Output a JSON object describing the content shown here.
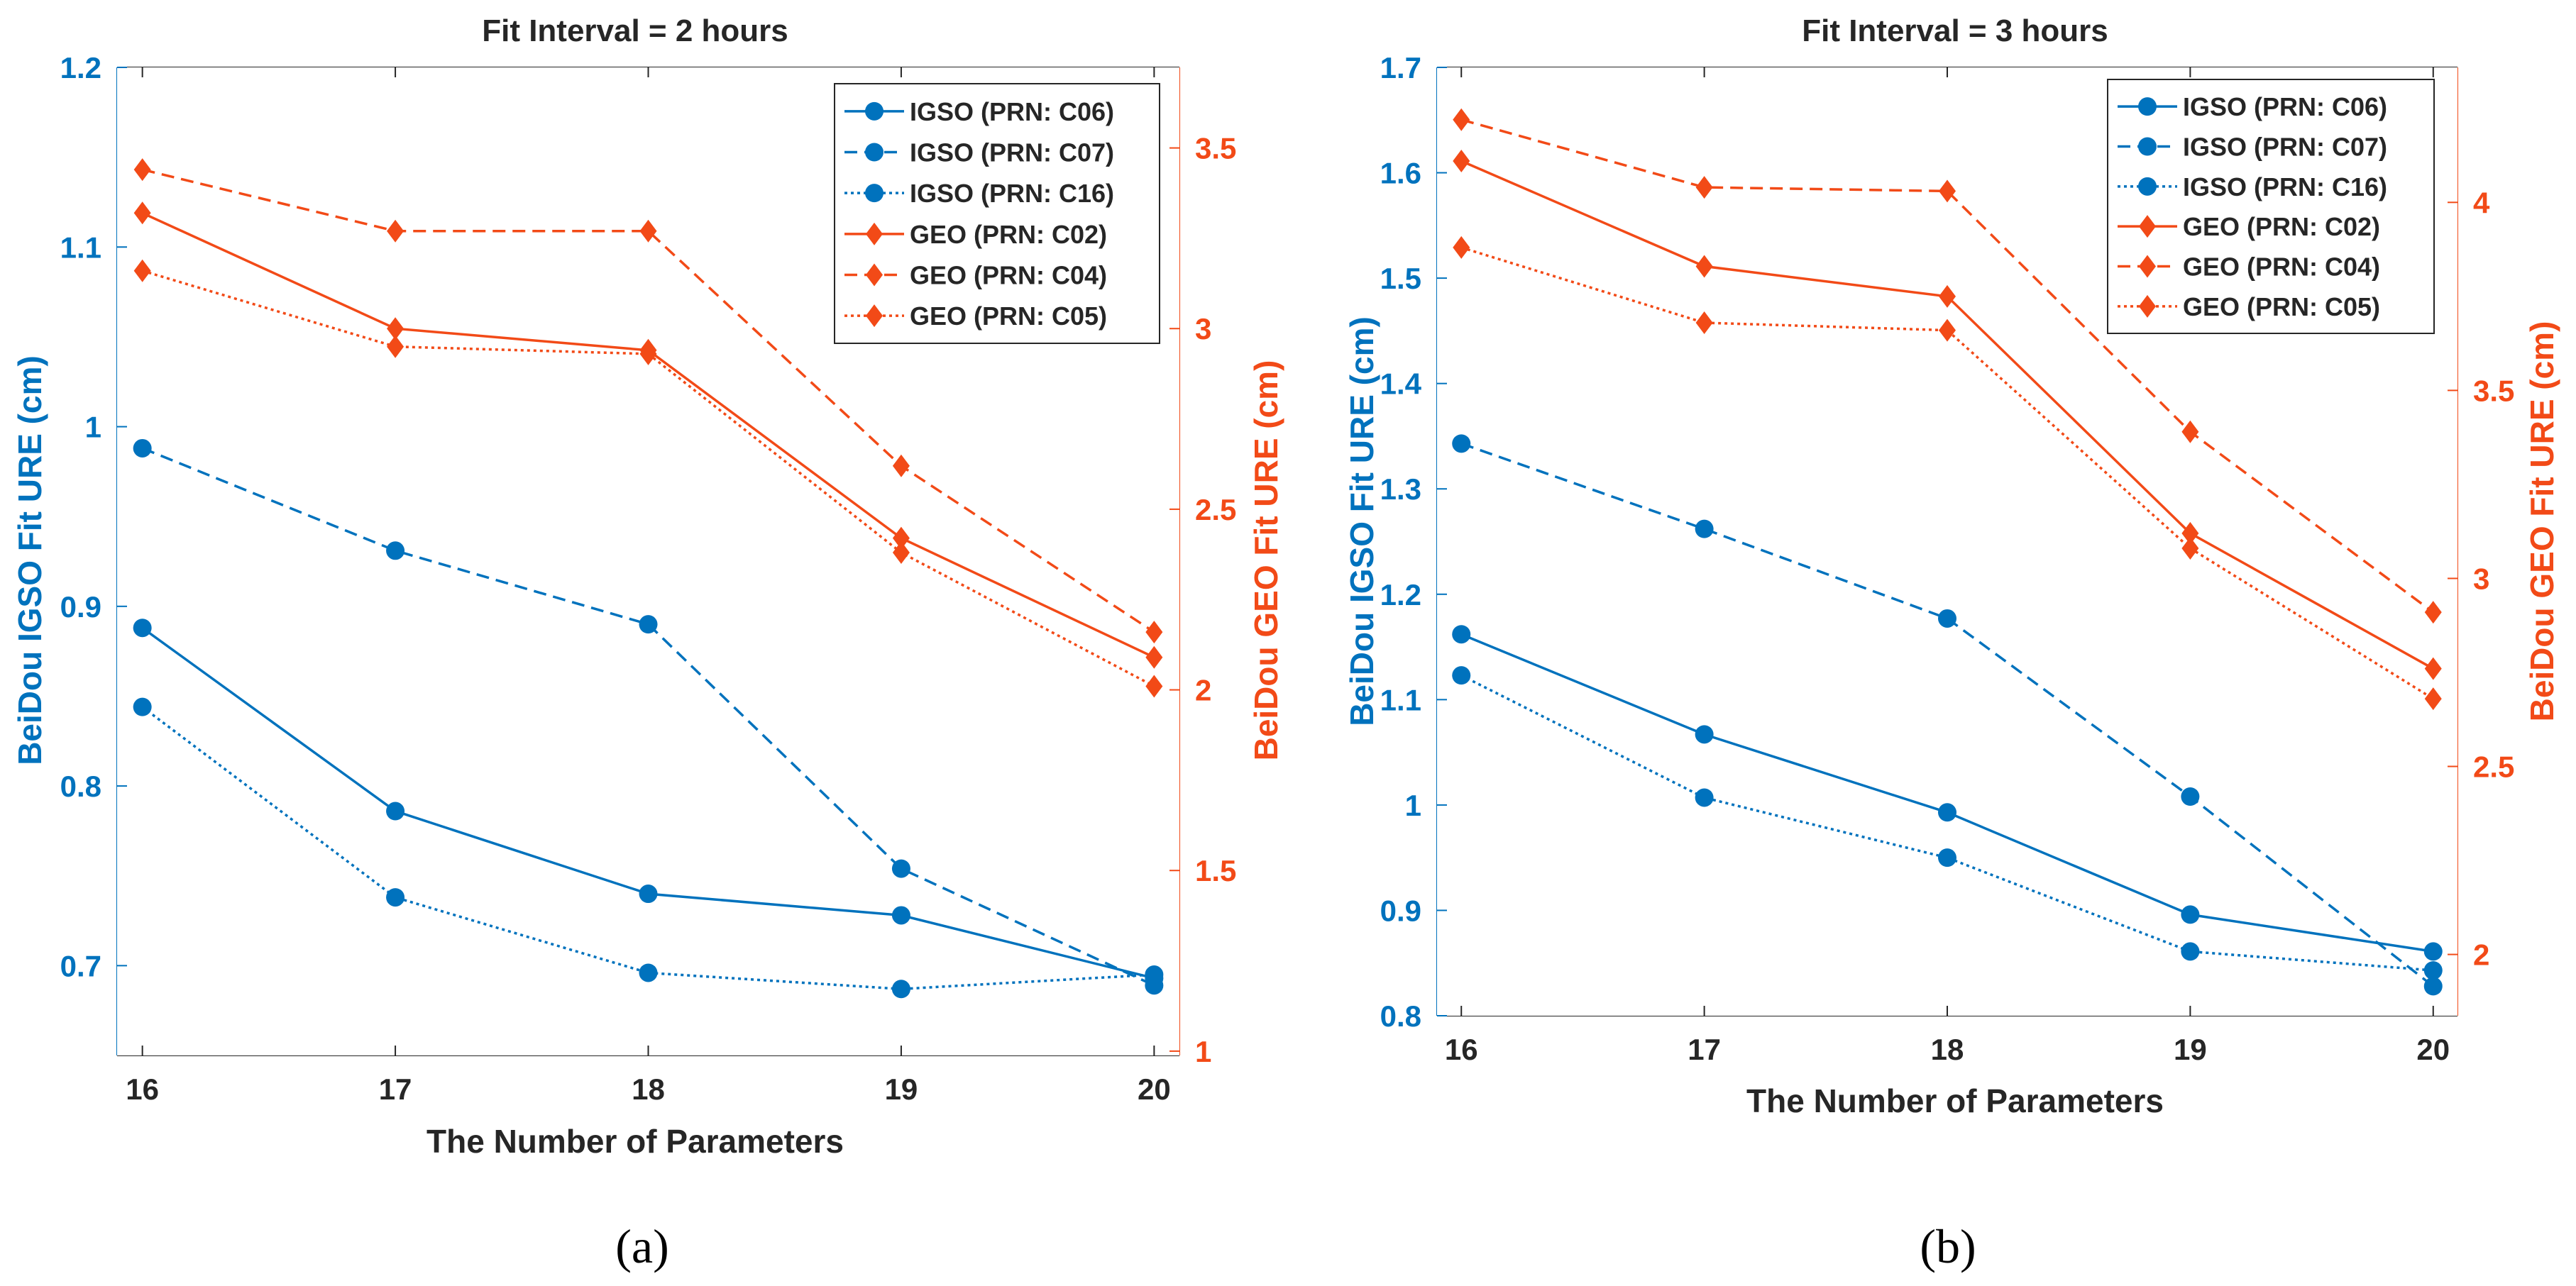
{
  "colors": {
    "igso": "#0072bd",
    "geo": "#f24a17",
    "axis_text": "#262626",
    "frame": "#262626"
  },
  "panels": [
    {
      "panel_label": "(a)",
      "chart_data": {
        "type": "line",
        "title": "Fit Interval = 2 hours",
        "xlabel": "The Number of Parameters",
        "ylabel_left": "BeiDou IGSO Fit URE (cm)",
        "ylabel_right": "BeiDou GEO Fit URE (cm)",
        "x": [
          16,
          17,
          18,
          19,
          20
        ],
        "xlim": [
          15.9,
          20.1
        ],
        "ylim_left": [
          0.65,
          1.2
        ],
        "ylim_right": [
          0.988,
          3.723
        ],
        "yticks_left": [
          0.7,
          0.8,
          0.9,
          1,
          1.1,
          1.2
        ],
        "ytick_labels_left": [
          "0.7",
          "0.8",
          "0.9",
          "1",
          "1.1",
          "1.2"
        ],
        "yticks_right": [
          1,
          1.5,
          2,
          2.5,
          3,
          3.5
        ],
        "ytick_labels_right": [
          "1",
          "1.5",
          "2",
          "2.5",
          "3",
          "3.5"
        ],
        "xtick_labels": [
          "16",
          "17",
          "18",
          "19",
          "20"
        ],
        "legend_position": "top-right",
        "series": [
          {
            "name": "IGSO (PRN: C06)",
            "axis": "left",
            "group": "igso",
            "dash": "solid",
            "marker": "circle",
            "values": [
              0.888,
              0.786,
              0.74,
              0.728,
              0.693
            ]
          },
          {
            "name": "IGSO (PRN: C07)",
            "axis": "left",
            "group": "igso",
            "dash": "dashed",
            "marker": "circle",
            "values": [
              0.988,
              0.931,
              0.89,
              0.754,
              0.689
            ]
          },
          {
            "name": "IGSO (PRN: C16)",
            "axis": "left",
            "group": "igso",
            "dash": "dotted",
            "marker": "circle",
            "values": [
              0.844,
              0.738,
              0.696,
              0.687,
              0.695
            ]
          },
          {
            "name": "GEO (PRN: C02)",
            "axis": "right",
            "group": "geo",
            "dash": "solid",
            "marker": "diamond",
            "values": [
              3.32,
              3.0,
              2.94,
              2.42,
              2.09
            ]
          },
          {
            "name": "GEO (PRN: C04)",
            "axis": "right",
            "group": "geo",
            "dash": "dashed",
            "marker": "diamond",
            "values": [
              3.44,
              3.27,
              3.27,
              2.62,
              2.16
            ]
          },
          {
            "name": "GEO (PRN: C05)",
            "axis": "right",
            "group": "geo",
            "dash": "dotted",
            "marker": "diamond",
            "values": [
              3.16,
              2.95,
              2.93,
              2.38,
              2.01
            ]
          }
        ]
      }
    },
    {
      "panel_label": "(b)",
      "chart_data": {
        "type": "line",
        "title": "Fit Interval = 3 hours",
        "xlabel": "The Number of Parameters",
        "ylabel_left": "BeiDou IGSO Fit URE (cm)",
        "ylabel_right": "BeiDou GEO Fit URE (cm)",
        "x": [
          16,
          17,
          18,
          19,
          20
        ],
        "xlim": [
          15.9,
          20.1
        ],
        "ylim_left": [
          0.8,
          1.7
        ],
        "ylim_right": [
          1.837,
          4.359
        ],
        "yticks_left": [
          0.8,
          0.9,
          1.0,
          1.1,
          1.2,
          1.3,
          1.4,
          1.5,
          1.6,
          1.7
        ],
        "ytick_labels_left": [
          "0.8",
          "0.9",
          "1",
          "1.1",
          "1.2",
          "1.3",
          "1.4",
          "1.5",
          "1.6",
          "1.7"
        ],
        "yticks_right": [
          2,
          2.5,
          3,
          3.5,
          4
        ],
        "ytick_labels_right": [
          "2",
          "2.5",
          "3",
          "3.5",
          "4"
        ],
        "xtick_labels": [
          "16",
          "17",
          "18",
          "19",
          "20"
        ],
        "legend_position": "top-right",
        "series": [
          {
            "name": "IGSO (PRN: C06)",
            "axis": "left",
            "group": "igso",
            "dash": "solid",
            "marker": "circle",
            "values": [
              1.162,
              1.067,
              0.993,
              0.896,
              0.861
            ]
          },
          {
            "name": "IGSO (PRN: C07)",
            "axis": "left",
            "group": "igso",
            "dash": "dashed",
            "marker": "circle",
            "values": [
              1.343,
              1.262,
              1.177,
              1.008,
              0.828
            ]
          },
          {
            "name": "IGSO (PRN: C16)",
            "axis": "left",
            "group": "igso",
            "dash": "dotted",
            "marker": "circle",
            "values": [
              1.123,
              1.007,
              0.95,
              0.861,
              0.843
            ]
          },
          {
            "name": "GEO (PRN: C02)",
            "axis": "right",
            "group": "geo",
            "dash": "solid",
            "marker": "diamond",
            "values": [
              4.11,
              3.83,
              3.75,
              3.12,
              2.76
            ]
          },
          {
            "name": "GEO (PRN: C04)",
            "axis": "right",
            "group": "geo",
            "dash": "dashed",
            "marker": "diamond",
            "values": [
              4.22,
              4.04,
              4.03,
              3.39,
              2.91
            ]
          },
          {
            "name": "GEO (PRN: C05)",
            "axis": "right",
            "group": "geo",
            "dash": "dotted",
            "marker": "diamond",
            "values": [
              3.88,
              3.68,
              3.66,
              3.08,
              2.68
            ]
          }
        ]
      }
    }
  ]
}
